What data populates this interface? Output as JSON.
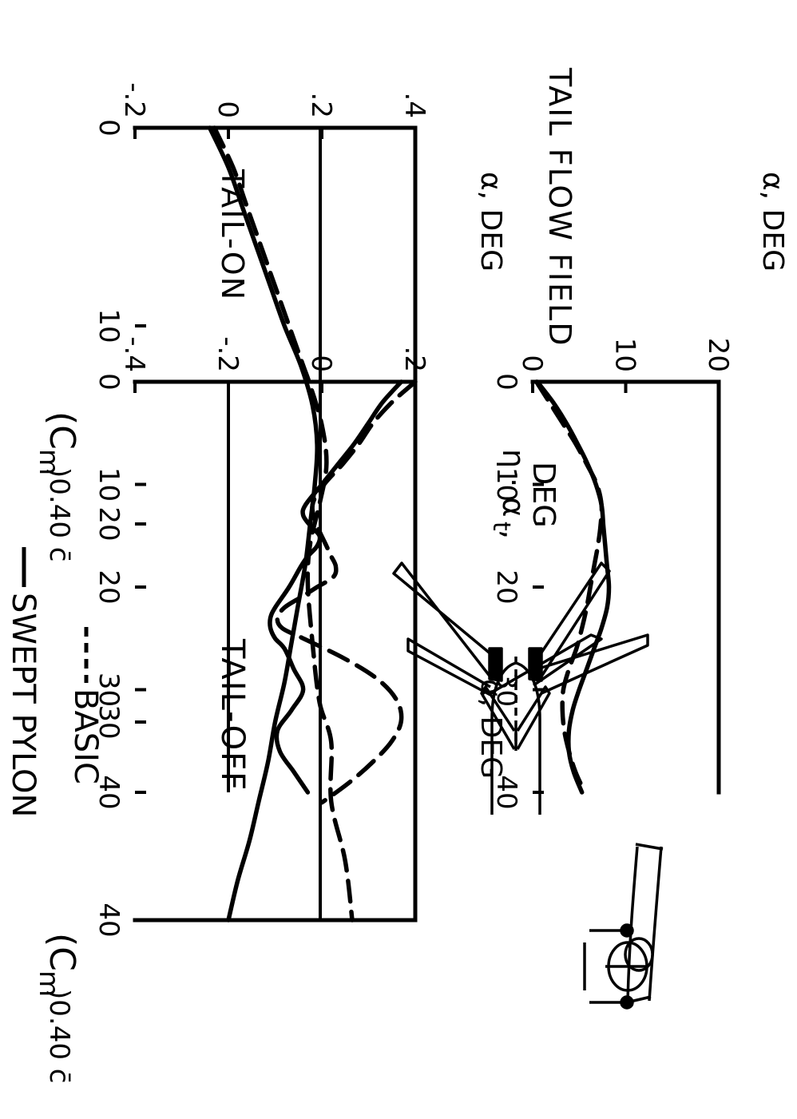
{
  "legend": [
    {
      "label": "SWEPT PYLON",
      "style": "solid"
    },
    {
      "label": "BASIC",
      "style": "dashed"
    }
  ],
  "chart_data": [
    {
      "type": "line",
      "annotation": "TAIL-OFF",
      "xlabel": "α, DEG",
      "ylabel_main": "(C",
      "ylabel_sub": "m",
      "ylabel_ref": ")0.40 c̄",
      "xlim": [
        0,
        40
      ],
      "ylim": [
        -0.2,
        0.4
      ],
      "x_ticks": [
        "0",
        "10",
        "20",
        "30",
        "40"
      ],
      "y_ticks": [
        "-.2",
        "0",
        ".2",
        ".4"
      ],
      "series": [
        {
          "name": "SWEPT PYLON",
          "style": "solid",
          "x": [
            0,
            2,
            4,
            6,
            8,
            10,
            12,
            14,
            16,
            18,
            20,
            22,
            24,
            26,
            28,
            30,
            32,
            34,
            36,
            38,
            40
          ],
          "y": [
            -0.04,
            0.0,
            0.03,
            0.06,
            0.09,
            0.12,
            0.155,
            0.18,
            0.19,
            0.185,
            0.175,
            0.165,
            0.15,
            0.135,
            0.12,
            0.1,
            0.085,
            0.065,
            0.045,
            0.02,
            0.0
          ]
        },
        {
          "name": "BASIC",
          "style": "dashed",
          "x": [
            0,
            2,
            4,
            6,
            8,
            10,
            12,
            13,
            15,
            17,
            19,
            21,
            23,
            26,
            29,
            31,
            34,
            37,
            40
          ],
          "y": [
            -0.03,
            0.01,
            0.04,
            0.07,
            0.1,
            0.13,
            0.16,
            0.175,
            0.2,
            0.21,
            0.195,
            0.175,
            0.17,
            0.18,
            0.195,
            0.22,
            0.22,
            0.25,
            0.265
          ]
        }
      ]
    },
    {
      "type": "line",
      "annotation": "TAIL-ON",
      "xlabel": "α, DEG",
      "ylabel_main": "(C",
      "ylabel_sub": "m",
      "ylabel_ref": ")0.40 c̄",
      "xlim": [
        0,
        40
      ],
      "ylim": [
        -0.4,
        0.2
      ],
      "x_ticks": [
        "0",
        "10",
        "20",
        "30",
        "40"
      ],
      "y_ticks": [
        "-.4",
        "-.2",
        "0",
        ".2"
      ],
      "series": [
        {
          "name": "SWEPT PYLON",
          "style": "solid",
          "x": [
            0,
            2,
            4,
            6,
            8,
            10,
            12,
            13,
            14,
            15,
            16,
            17,
            18,
            20,
            22,
            23,
            24,
            25,
            26,
            28,
            30,
            32,
            34,
            36,
            38,
            40
          ],
          "y": [
            0.17,
            0.13,
            0.1,
            0.07,
            0.035,
            0.0,
            -0.035,
            -0.04,
            -0.025,
            -0.005,
            -0.01,
            -0.03,
            -0.045,
            -0.07,
            -0.1,
            -0.11,
            -0.11,
            -0.1,
            -0.08,
            -0.06,
            -0.04,
            -0.065,
            -0.095,
            -0.09,
            -0.06,
            -0.03
          ]
        },
        {
          "name": "BASIC",
          "style": "dashed",
          "x": [
            0,
            2,
            4,
            6,
            8,
            10,
            12,
            14,
            16,
            17,
            18,
            19,
            20,
            21,
            22,
            23,
            24,
            25,
            27,
            29,
            31,
            33,
            35,
            37,
            39,
            41
          ],
          "y": [
            0.2,
            0.15,
            0.11,
            0.08,
            0.045,
            0.005,
            -0.02,
            -0.01,
            0.01,
            0.02,
            0.03,
            0.025,
            -0.01,
            -0.045,
            -0.08,
            -0.095,
            -0.085,
            -0.04,
            0.05,
            0.12,
            0.16,
            0.17,
            0.15,
            0.11,
            0.06,
            0.0
          ]
        }
      ]
    },
    {
      "type": "line",
      "annotation": "TAIL FLOW FIELD",
      "xlabel": "α, DEG",
      "ylabel_main": "η · α",
      "ylabel_sub": "t",
      "ylabel_ref": ",",
      "ylabel_units": "DEG",
      "xlim": [
        0,
        40
      ],
      "ylim": [
        0,
        20
      ],
      "x_ticks": [
        "0",
        "10",
        "20",
        "30",
        "40"
      ],
      "y_ticks": [
        "0",
        "10",
        "20"
      ],
      "series": [
        {
          "name": "SWEPT PYLON",
          "style": "solid",
          "x": [
            0,
            2,
            4,
            6,
            8,
            10,
            12,
            14,
            16,
            18,
            20,
            22,
            24,
            26,
            28,
            30,
            32,
            34,
            36,
            38,
            40
          ],
          "y": [
            0.5,
            2.2,
            3.6,
            4.8,
            5.9,
            6.8,
            7.4,
            7.6,
            7.8,
            8.0,
            8.2,
            8.0,
            7.4,
            6.6,
            5.8,
            5.0,
            4.3,
            3.9,
            3.9,
            4.4,
            5.3
          ]
        },
        {
          "name": "BASIC",
          "style": "dashed",
          "x": [
            0,
            2,
            4,
            6,
            8,
            10,
            12,
            14,
            16,
            18,
            20,
            22,
            24,
            26,
            28,
            30,
            32,
            34,
            36,
            38,
            40
          ],
          "y": [
            0.4,
            1.8,
            3.2,
            4.6,
            5.8,
            6.9,
            7.4,
            7.3,
            7.0,
            6.6,
            6.2,
            5.8,
            5.3,
            4.7,
            3.9,
            3.3,
            3.2,
            3.4,
            3.9,
            4.6,
            5.6
          ]
        }
      ]
    }
  ]
}
